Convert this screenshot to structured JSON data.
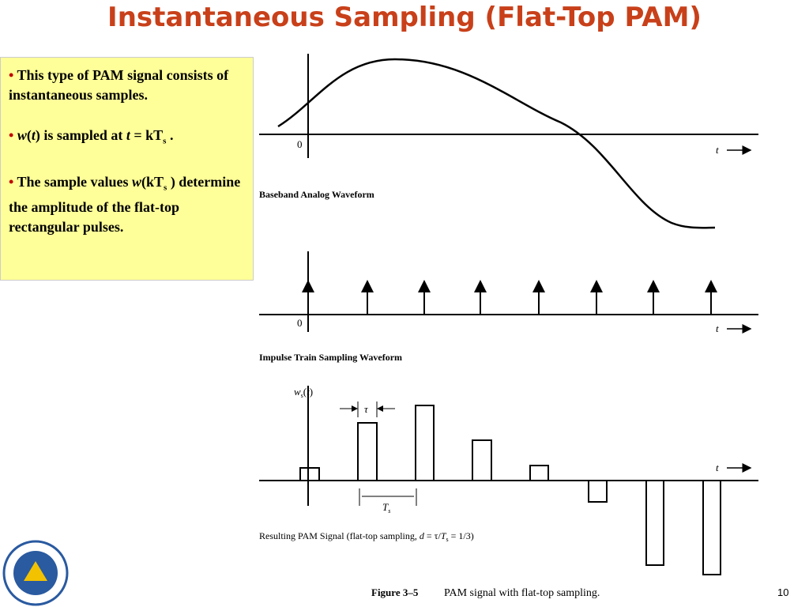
{
  "header": {
    "title": "Instantaneous Sampling (Flat-Top PAM)"
  },
  "bullets": [
    {
      "runs": [
        "This type of PAM signal consists of instantaneous samples."
      ]
    },
    {
      "runs": [
        "w",
        "(",
        "t",
        ") is sampled at ",
        "t",
        " = kT",
        "s",
        " ."
      ]
    },
    {
      "runs": [
        "The sample values ",
        "w",
        "(kT",
        "s",
        " ) determine the amplitude of the flat-top rectangular pulses."
      ]
    }
  ],
  "figure": {
    "axis_zero": "0",
    "axis_t": "t",
    "panels": [
      "Baseband Analog Waveform",
      "Impulse Train Sampling Waveform"
    ],
    "pam_label": [
      "Resulting PAM Signal (flat-top sampling, ",
      "d",
      " = τ/",
      "T",
      "s",
      " = 1/3)"
    ],
    "ws_label": [
      "w",
      "s",
      "(",
      "t",
      ")"
    ],
    "tau": "τ",
    "ts_label": [
      "T",
      "s"
    ],
    "caption_number": "Figure 3–5",
    "caption_text": "PAM signal with flat-top sampling."
  },
  "footer": {
    "page": "10"
  }
}
